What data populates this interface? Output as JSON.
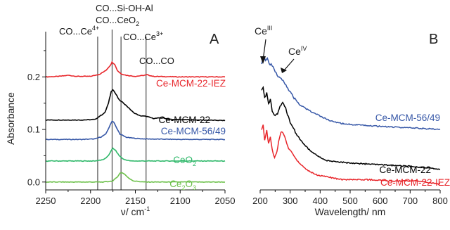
{
  "chart_data": [
    {
      "type": "line",
      "panel": "A",
      "xlabel": "ν/ cm",
      "xlabel_sup": "-1",
      "ylabel": "Absorbance",
      "x_reversed": true,
      "xlim": [
        2250,
        2050
      ],
      "ylim": [
        -0.015,
        0.27
      ],
      "x_ticks": [
        "2250",
        "2200",
        "2150",
        "2100",
        "2050"
      ],
      "x_tick_values": [
        2250,
        2200,
        2150,
        2100,
        2050
      ],
      "y_ticks": [
        "0.0",
        "0.1",
        "0.2"
      ],
      "y_tick_values": [
        0.0,
        0.1,
        0.2
      ],
      "vertical_lines": [
        2192,
        2176,
        2166,
        2138
      ],
      "annotations": [
        {
          "base": "CO...Ce",
          "sup": "4+",
          "sub": ""
        },
        {
          "base": "CO...Si-OH-Al",
          "sup": "",
          "sub": ""
        },
        {
          "base": "CO...CeO",
          "sup": "",
          "sub": "2"
        },
        {
          "base": "CO...Ce",
          "sup": "3+",
          "sub": ""
        },
        {
          "base": "CO...CO",
          "sup": "",
          "sub": ""
        }
      ],
      "series": [
        {
          "name": "Ce-MCM-22-IEZ",
          "color": "#e8262b",
          "baseline": 0.2,
          "points": [
            [
              2250,
              0.2
            ],
            [
              2235,
              0.201
            ],
            [
              2225,
              0.203
            ],
            [
              2215,
              0.201
            ],
            [
              2200,
              0.201
            ],
            [
              2190,
              0.205
            ],
            [
              2183,
              0.212
            ],
            [
              2178,
              0.222
            ],
            [
              2176,
              0.228
            ],
            [
              2173,
              0.224
            ],
            [
              2170,
              0.212
            ],
            [
              2166,
              0.206
            ],
            [
              2160,
              0.203
            ],
            [
              2150,
              0.201
            ],
            [
              2140,
              0.203
            ],
            [
              2137,
              0.204
            ],
            [
              2130,
              0.201
            ],
            [
              2100,
              0.2
            ],
            [
              2050,
              0.2
            ]
          ]
        },
        {
          "name": "Ce-MCM-22",
          "color": "#000000",
          "baseline": 0.118,
          "points": [
            [
              2250,
              0.118
            ],
            [
              2210,
              0.118
            ],
            [
              2195,
              0.119
            ],
            [
              2190,
              0.125
            ],
            [
              2184,
              0.132
            ],
            [
              2180,
              0.15
            ],
            [
              2177,
              0.172
            ],
            [
              2175,
              0.176
            ],
            [
              2172,
              0.168
            ],
            [
              2168,
              0.156
            ],
            [
              2163,
              0.15
            ],
            [
              2158,
              0.142
            ],
            [
              2152,
              0.132
            ],
            [
              2145,
              0.126
            ],
            [
              2138,
              0.125
            ],
            [
              2130,
              0.121
            ],
            [
              2120,
              0.122
            ],
            [
              2110,
              0.119
            ],
            [
              2080,
              0.118
            ],
            [
              2050,
              0.117
            ]
          ]
        },
        {
          "name": "Ce-MCM-56/49",
          "color": "#3657a7",
          "baseline": 0.081,
          "points": [
            [
              2250,
              0.081
            ],
            [
              2210,
              0.081
            ],
            [
              2195,
              0.082
            ],
            [
              2188,
              0.086
            ],
            [
              2183,
              0.091
            ],
            [
              2179,
              0.105
            ],
            [
              2176,
              0.116
            ],
            [
              2174,
              0.114
            ],
            [
              2171,
              0.103
            ],
            [
              2167,
              0.091
            ],
            [
              2160,
              0.085
            ],
            [
              2150,
              0.083
            ],
            [
              2140,
              0.082
            ],
            [
              2100,
              0.081
            ],
            [
              2050,
              0.081
            ]
          ]
        },
        {
          "name": "CeO",
          "name_sub": "2",
          "color": "#2fb86a",
          "baseline": 0.04,
          "points": [
            [
              2250,
              0.04
            ],
            [
              2195,
              0.04
            ],
            [
              2185,
              0.043
            ],
            [
              2180,
              0.05
            ],
            [
              2177,
              0.06
            ],
            [
              2175,
              0.064
            ],
            [
              2172,
              0.06
            ],
            [
              2168,
              0.05
            ],
            [
              2163,
              0.043
            ],
            [
              2155,
              0.04
            ],
            [
              2050,
              0.04
            ]
          ]
        },
        {
          "name": "Ce",
          "name_sub": "2",
          "name_suffix": "O",
          "name_sub2": "3",
          "color": "#6cc04a",
          "baseline": 0.0,
          "points": [
            [
              2250,
              0.0
            ],
            [
              2185,
              0.0
            ],
            [
              2175,
              0.002
            ],
            [
              2170,
              0.01
            ],
            [
              2167,
              0.017
            ],
            [
              2165,
              0.018
            ],
            [
              2162,
              0.015
            ],
            [
              2158,
              0.008
            ],
            [
              2152,
              0.002
            ],
            [
              2140,
              0.0
            ],
            [
              2050,
              0.0
            ]
          ]
        }
      ]
    },
    {
      "type": "line",
      "panel": "B",
      "xlabel": "Wavelength/ nm",
      "xlim": [
        200,
        800
      ],
      "x_ticks": [
        "200",
        "300",
        "400",
        "500",
        "600",
        "700",
        "800"
      ],
      "x_tick_values": [
        200,
        300,
        400,
        500,
        600,
        700,
        800
      ],
      "annotations": [
        {
          "base": "Ce",
          "sup": "III"
        },
        {
          "base": "Ce",
          "sup": "IV"
        }
      ],
      "series": [
        {
          "name": "Ce-MCM-56/49",
          "color": "#3657a7",
          "points": [
            [
              205,
              0.86
            ],
            [
              212,
              0.9
            ],
            [
              218,
              0.88
            ],
            [
              224,
              0.89
            ],
            [
              230,
              0.86
            ],
            [
              240,
              0.84
            ],
            [
              250,
              0.8
            ],
            [
              260,
              0.77
            ],
            [
              270,
              0.76
            ],
            [
              280,
              0.73
            ],
            [
              295,
              0.68
            ],
            [
              310,
              0.63
            ],
            [
              330,
              0.58
            ],
            [
              360,
              0.54
            ],
            [
              400,
              0.5
            ],
            [
              430,
              0.47
            ],
            [
              470,
              0.45
            ],
            [
              520,
              0.44
            ],
            [
              600,
              0.43
            ],
            [
              700,
              0.42
            ],
            [
              800,
              0.41
            ]
          ]
        },
        {
          "name": "Ce-MCM-22",
          "color": "#000000",
          "points": [
            [
              205,
              0.68
            ],
            [
              210,
              0.7
            ],
            [
              215,
              0.62
            ],
            [
              222,
              0.66
            ],
            [
              228,
              0.58
            ],
            [
              234,
              0.62
            ],
            [
              240,
              0.54
            ],
            [
              250,
              0.5
            ],
            [
              258,
              0.52
            ],
            [
              266,
              0.56
            ],
            [
              275,
              0.59
            ],
            [
              285,
              0.55
            ],
            [
              300,
              0.46
            ],
            [
              320,
              0.38
            ],
            [
              345,
              0.31
            ],
            [
              370,
              0.26
            ],
            [
              400,
              0.22
            ],
            [
              420,
              0.2
            ],
            [
              450,
              0.19
            ],
            [
              520,
              0.18
            ],
            [
              600,
              0.17
            ],
            [
              700,
              0.16
            ],
            [
              800,
              0.14
            ]
          ]
        },
        {
          "name": "Ce-MCM-22-IEZ",
          "color": "#e8262b",
          "points": [
            [
              205,
              0.4
            ],
            [
              210,
              0.44
            ],
            [
              215,
              0.34
            ],
            [
              222,
              0.4
            ],
            [
              228,
              0.31
            ],
            [
              234,
              0.36
            ],
            [
              240,
              0.27
            ],
            [
              248,
              0.22
            ],
            [
              256,
              0.26
            ],
            [
              264,
              0.35
            ],
            [
              272,
              0.4
            ],
            [
              282,
              0.36
            ],
            [
              295,
              0.28
            ],
            [
              315,
              0.22
            ],
            [
              335,
              0.17
            ],
            [
              360,
              0.13
            ],
            [
              390,
              0.1
            ],
            [
              420,
              0.09
            ],
            [
              470,
              0.07
            ],
            [
              550,
              0.07
            ],
            [
              650,
              0.06
            ],
            [
              720,
              0.06
            ],
            [
              800,
              0.04
            ]
          ]
        }
      ]
    }
  ]
}
